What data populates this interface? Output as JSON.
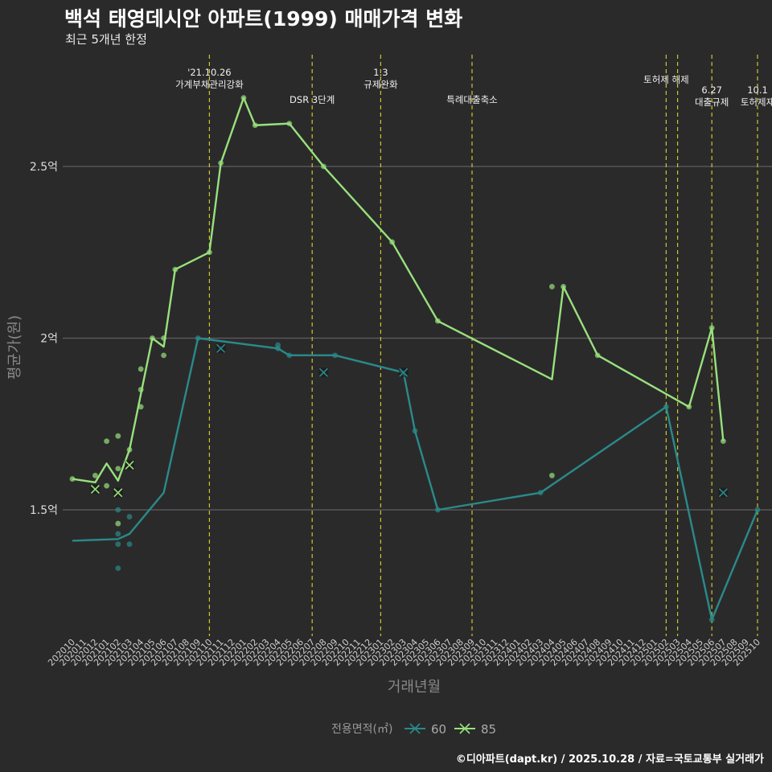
{
  "title": "백석 태영데시안 아파트(1999) 매매가격 변화",
  "subtitle": "최근 5개년 한정",
  "caption": "©디아파트(dapt.kr) / 2025.10.28 / 자료=국토교통부 실거래가",
  "chart_data": {
    "type": "line",
    "xlabel": "거래년월",
    "ylabel": "평균가(원)",
    "legend_title": "전용면적(㎡)",
    "legend_position": "bottom",
    "x_ticks": [
      "202010",
      "202011",
      "202012",
      "202101",
      "202102",
      "202103",
      "202104",
      "202105",
      "202106",
      "202107",
      "202108",
      "202109",
      "202110",
      "202111",
      "202112",
      "202201",
      "202202",
      "202203",
      "202204",
      "202205",
      "202206",
      "202207",
      "202208",
      "202209",
      "202210",
      "202211",
      "202212",
      "202301",
      "202302",
      "202303",
      "202304",
      "202305",
      "202306",
      "202307",
      "202308",
      "202309",
      "202310",
      "202311",
      "202312",
      "202401",
      "202402",
      "202403",
      "202404",
      "202405",
      "202406",
      "202407",
      "202408",
      "202409",
      "202410",
      "202411",
      "202412",
      "202501",
      "202502",
      "202503",
      "202504",
      "202505",
      "202506",
      "202507",
      "202508",
      "202509",
      "202510"
    ],
    "y_ticks": [
      {
        "value": 1.5,
        "label": "1.5억"
      },
      {
        "value": 2.0,
        "label": "2억"
      },
      {
        "value": 2.5,
        "label": "2.5억"
      }
    ],
    "ylim": [
      1.11,
      2.85
    ],
    "series": [
      {
        "name": "60",
        "color": "#2a8a8a",
        "line": [
          [
            0,
            1.41
          ],
          [
            4,
            1.415
          ],
          [
            5,
            1.43
          ],
          [
            8,
            1.55
          ],
          [
            11,
            2.0
          ],
          [
            18,
            1.97
          ],
          [
            19,
            1.95
          ],
          [
            23,
            1.95
          ],
          [
            29,
            1.9
          ],
          [
            30,
            1.73
          ],
          [
            32,
            1.5
          ],
          [
            41,
            1.55
          ],
          [
            52,
            1.8
          ],
          [
            56,
            1.18
          ],
          [
            60,
            1.5
          ]
        ],
        "points": [
          [
            4,
            1.5
          ],
          [
            4,
            1.43
          ],
          [
            4,
            1.4
          ],
          [
            4,
            1.33
          ],
          [
            5,
            1.48
          ],
          [
            5,
            1.4
          ],
          [
            11,
            2.0
          ],
          [
            18,
            1.98
          ],
          [
            18,
            1.97
          ],
          [
            19,
            1.95
          ],
          [
            23,
            1.95
          ],
          [
            30,
            1.73
          ],
          [
            32,
            1.5
          ],
          [
            41,
            1.55
          ],
          [
            52,
            1.8
          ],
          [
            56,
            1.18
          ],
          [
            60,
            1.5
          ]
        ],
        "cancelled": [
          [
            13,
            1.97
          ],
          [
            22,
            1.9
          ],
          [
            29,
            1.9
          ],
          [
            57,
            1.55
          ]
        ]
      },
      {
        "name": "85",
        "color": "#98e17c",
        "line": [
          [
            0,
            1.59
          ],
          [
            2,
            1.58
          ],
          [
            3,
            1.635
          ],
          [
            4,
            1.585
          ],
          [
            5,
            1.675
          ],
          [
            7,
            2.0
          ],
          [
            8,
            1.975
          ],
          [
            9,
            2.2
          ],
          [
            12,
            2.25
          ],
          [
            13,
            2.51
          ],
          [
            15,
            2.7
          ],
          [
            16,
            2.62
          ],
          [
            19,
            2.625
          ],
          [
            22,
            2.5
          ],
          [
            28,
            2.28
          ],
          [
            32,
            2.05
          ],
          [
            42,
            1.88
          ],
          [
            43,
            2.15
          ],
          [
            46,
            1.95
          ],
          [
            54,
            1.8
          ],
          [
            56,
            2.03
          ],
          [
            57,
            1.7
          ]
        ],
        "points": [
          [
            0,
            1.59
          ],
          [
            2,
            1.6
          ],
          [
            3,
            1.7
          ],
          [
            3,
            1.57
          ],
          [
            4,
            1.715
          ],
          [
            4,
            1.62
          ],
          [
            4,
            1.46
          ],
          [
            5,
            1.675
          ],
          [
            6,
            1.91
          ],
          [
            6,
            1.85
          ],
          [
            6,
            1.8
          ],
          [
            7,
            2.0
          ],
          [
            8,
            2.0
          ],
          [
            8,
            1.95
          ],
          [
            9,
            2.2
          ],
          [
            12,
            2.25
          ],
          [
            13,
            2.51
          ],
          [
            15,
            2.7
          ],
          [
            16,
            2.62
          ],
          [
            19,
            2.625
          ],
          [
            22,
            2.5
          ],
          [
            28,
            2.28
          ],
          [
            32,
            2.05
          ],
          [
            42,
            2.15
          ],
          [
            42,
            1.6
          ],
          [
            43,
            2.15
          ],
          [
            46,
            1.95
          ],
          [
            54,
            1.8
          ],
          [
            56,
            2.03
          ],
          [
            57,
            1.7
          ]
        ],
        "cancelled": [
          [
            2,
            1.56
          ],
          [
            4,
            1.55
          ],
          [
            5,
            1.63
          ]
        ]
      }
    ],
    "events": [
      {
        "x": 12,
        "lines": [
          "'21.10.26",
          "가계부채관리강화"
        ],
        "level": 0
      },
      {
        "x": 21,
        "lines": [
          "DSR 3단계"
        ],
        "level": 2
      },
      {
        "x": 27,
        "lines": [
          "1.3",
          "규제완화"
        ],
        "level": 0
      },
      {
        "x": 35,
        "lines": [
          "특례대출축소"
        ],
        "level": 2
      },
      {
        "x": 52,
        "lines": [
          "토허제 해제"
        ],
        "level": 1
      },
      {
        "x": 53,
        "lines": [],
        "level": 1
      },
      {
        "x": 56,
        "lines": [
          "6.27",
          "대출규제"
        ],
        "level": 1.5
      },
      {
        "x": 60,
        "lines": [
          "10.1",
          "토허제재"
        ],
        "level": 1.5
      }
    ]
  }
}
